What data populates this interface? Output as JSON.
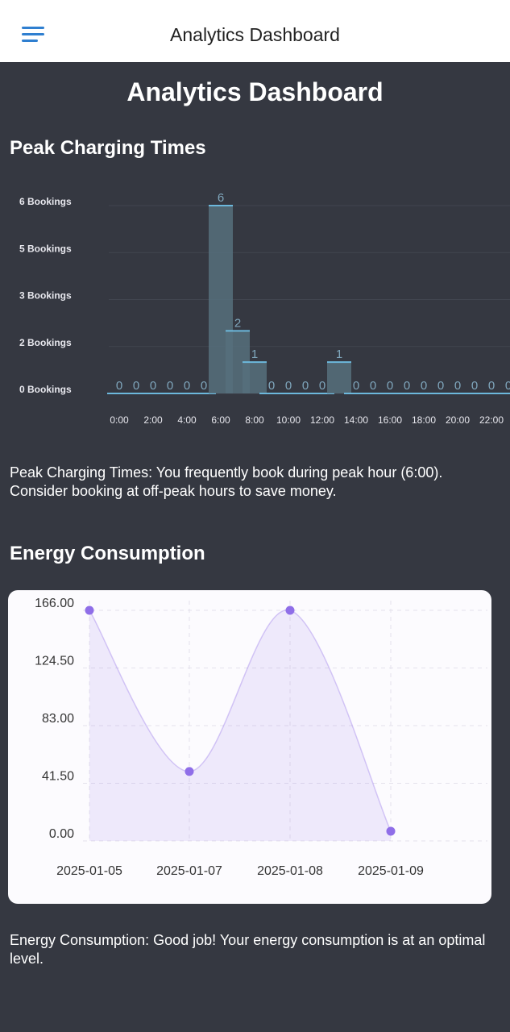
{
  "app_bar": {
    "title": "Analytics Dashboard"
  },
  "page_title": "Analytics Dashboard",
  "sections": [
    {
      "heading": "Peak Charging Times",
      "note": "Peak Charging Times: You frequently book during peak hour (6:00). Consider booking at off-peak hours to save money."
    },
    {
      "heading": "Energy Consumption",
      "note": "Energy Consumption: Good job! Your energy consumption is at an optimal level."
    }
  ],
  "chart_data": [
    {
      "type": "bar",
      "categories": [
        "0:00",
        null,
        "2:00",
        null,
        "4:00",
        null,
        "6:00",
        null,
        "8:00",
        null,
        "10:00",
        null,
        "12:00",
        null,
        "14:00",
        null,
        "16:00",
        null,
        "18:00",
        null,
        "20:00",
        null,
        "22:00",
        null
      ],
      "values": [
        0,
        0,
        0,
        0,
        0,
        0,
        6,
        2,
        1,
        0,
        0,
        0,
        0,
        1,
        0,
        0,
        0,
        0,
        0,
        0,
        0,
        0,
        0,
        0
      ],
      "color": "#56707c",
      "edge_color": "#6cb8dc",
      "ylim": [
        0,
        6
      ],
      "yticks": [
        {
          "value": 0,
          "label": "0 Bookings"
        },
        {
          "value": 1.5,
          "label": "2 Bookings"
        },
        {
          "value": 3,
          "label": "3 Bookings"
        },
        {
          "value": 4.5,
          "label": "5 Bookings"
        },
        {
          "value": 6,
          "label": "6 Bookings"
        }
      ],
      "grid": true
    },
    {
      "type": "line",
      "categories": [
        "2025-01-05",
        "2025-01-07",
        "2025-01-08",
        "2025-01-09"
      ],
      "values": [
        166,
        50,
        166,
        7
      ],
      "color": "#8f6ee8",
      "ylim": [
        0,
        166
      ],
      "yticks": [
        {
          "value": 0,
          "label": "0.00"
        },
        {
          "value": 41.5,
          "label": "41.50"
        },
        {
          "value": 83,
          "label": "83.00"
        },
        {
          "value": 124.5,
          "label": "124.50"
        },
        {
          "value": 166,
          "label": "166.00"
        }
      ],
      "grid": true
    }
  ]
}
